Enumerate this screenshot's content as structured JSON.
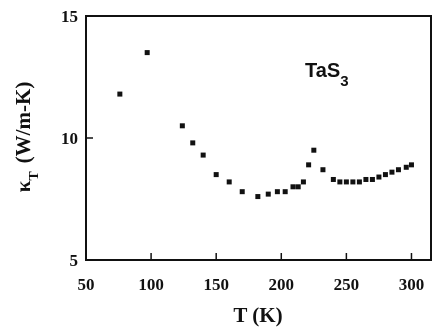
{
  "chart_data": {
    "type": "scatter",
    "title": "",
    "xlabel": "T (K)",
    "ylabel": "κ_T (W/m-K)",
    "ylabel_main": "κ",
    "ylabel_sub": "T",
    "ylabel_units": "(W/m-K)",
    "annotation": "TaS",
    "annotation_sub": "3",
    "xlim": [
      50,
      315
    ],
    "ylim": [
      5,
      15
    ],
    "xticks": [
      50,
      100,
      150,
      200,
      250,
      300
    ],
    "yticks": [
      5,
      10,
      15
    ],
    "xtick_labels": [
      "50",
      "100",
      "150",
      "200",
      "250",
      "300"
    ],
    "ytick_labels": [
      "5",
      "10",
      "15"
    ],
    "grid": false,
    "colors": {
      "points": "#111111",
      "axes": "#111111"
    },
    "points": [
      {
        "x": 76,
        "y": 11.8
      },
      {
        "x": 97,
        "y": 13.5
      },
      {
        "x": 124,
        "y": 10.5
      },
      {
        "x": 132,
        "y": 9.8
      },
      {
        "x": 140,
        "y": 9.3
      },
      {
        "x": 150,
        "y": 8.5
      },
      {
        "x": 160,
        "y": 8.2
      },
      {
        "x": 170,
        "y": 7.8
      },
      {
        "x": 182,
        "y": 7.6
      },
      {
        "x": 190,
        "y": 7.7
      },
      {
        "x": 197,
        "y": 7.8
      },
      {
        "x": 203,
        "y": 7.8
      },
      {
        "x": 209,
        "y": 8.0
      },
      {
        "x": 213,
        "y": 8.0
      },
      {
        "x": 217,
        "y": 8.2
      },
      {
        "x": 221,
        "y": 8.9
      },
      {
        "x": 225,
        "y": 9.5
      },
      {
        "x": 232,
        "y": 8.7
      },
      {
        "x": 240,
        "y": 8.3
      },
      {
        "x": 245,
        "y": 8.2
      },
      {
        "x": 250,
        "y": 8.2
      },
      {
        "x": 255,
        "y": 8.2
      },
      {
        "x": 260,
        "y": 8.2
      },
      {
        "x": 265,
        "y": 8.3
      },
      {
        "x": 270,
        "y": 8.3
      },
      {
        "x": 275,
        "y": 8.4
      },
      {
        "x": 280,
        "y": 8.5
      },
      {
        "x": 285,
        "y": 8.6
      },
      {
        "x": 290,
        "y": 8.7
      },
      {
        "x": 296,
        "y": 8.8
      },
      {
        "x": 300,
        "y": 8.9
      }
    ]
  }
}
